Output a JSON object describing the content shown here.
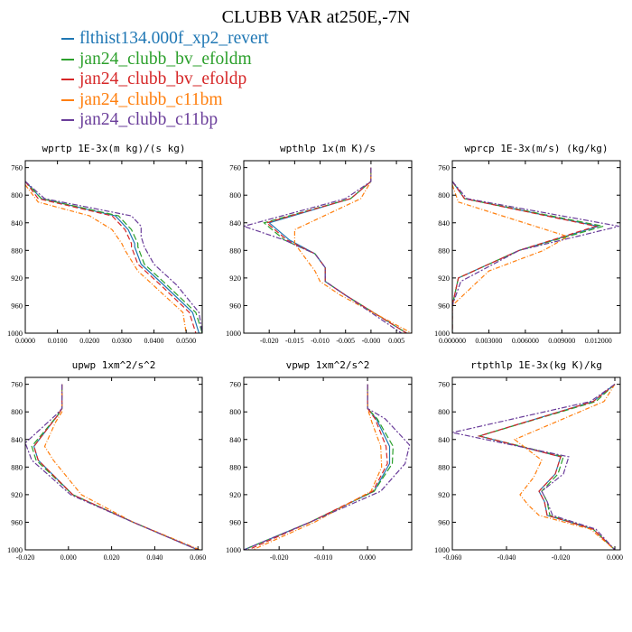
{
  "title": "CLUBB VAR at250E,-7N",
  "legend": [
    {
      "label": "flthist134.000f_xp2_revert",
      "color": "#1f77b4"
    },
    {
      "label": "jan24_clubb_bv_efoldm",
      "color": "#2ca02c"
    },
    {
      "label": "jan24_clubb_bv_efoldp",
      "color": "#d62728"
    },
    {
      "label": "jan24_clubb_c11bm",
      "color": "#ff7f0e"
    },
    {
      "label": "jan24_clubb_c11bp",
      "color": "#6a3d9a"
    }
  ],
  "chart_data": [
    {
      "type": "line",
      "title": "wprtp  1E-3x(m kg)/(s kg)",
      "xlim": [
        0,
        0.055
      ],
      "ylim": [
        1000,
        750
      ],
      "yticks": [
        760,
        800,
        840,
        880,
        920,
        960,
        1000
      ],
      "xticks": [
        0,
        0.01,
        0.02,
        0.03,
        0.04,
        0.05
      ],
      "xticklabels": [
        "0.0000",
        "0.0100",
        "0.0200",
        "0.0300",
        "0.0400",
        "0.0500"
      ],
      "series": [
        {
          "color": "#1f77b4",
          "x": [
            0,
            0.005,
            0.028,
            0.032,
            0.034,
            0.034,
            0.036,
            0.043,
            0.052,
            0.054
          ],
          "y": [
            780,
            805,
            830,
            850,
            870,
            875,
            900,
            930,
            970,
            1000
          ]
        },
        {
          "color": "#2ca02c",
          "x": [
            0,
            0.005,
            0.029,
            0.033,
            0.035,
            0.035,
            0.037,
            0.044,
            0.053,
            0.055
          ],
          "y": [
            780,
            805,
            830,
            850,
            870,
            875,
            900,
            930,
            970,
            1000
          ]
        },
        {
          "color": "#d62728",
          "x": [
            0,
            0.004,
            0.027,
            0.031,
            0.033,
            0.033,
            0.035,
            0.042,
            0.051,
            0.053
          ],
          "y": [
            780,
            805,
            830,
            850,
            870,
            875,
            900,
            930,
            970,
            1000
          ]
        },
        {
          "color": "#ff7f0e",
          "x": [
            0,
            0.004,
            0.02,
            0.027,
            0.03,
            0.031,
            0.035,
            0.042,
            0.049,
            0.05
          ],
          "y": [
            785,
            810,
            830,
            850,
            870,
            880,
            910,
            940,
            970,
            1000
          ]
        },
        {
          "color": "#6a3d9a",
          "x": [
            0,
            0.006,
            0.033,
            0.036,
            0.036,
            0.037,
            0.04,
            0.047,
            0.054,
            0.055
          ],
          "y": [
            780,
            805,
            830,
            845,
            860,
            875,
            900,
            930,
            970,
            1000
          ]
        }
      ]
    },
    {
      "type": "line",
      "title": "wpthlp  1x(m K)/s",
      "xlim": [
        -0.025,
        0.008
      ],
      "ylim": [
        1000,
        750
      ],
      "yticks": [
        760,
        800,
        840,
        880,
        920,
        960,
        1000
      ],
      "xticks": [
        -0.02,
        -0.015,
        -0.01,
        -0.005,
        0,
        0.005
      ],
      "xticklabels": [
        "-0.020",
        "-0.015",
        "-0.010",
        "-0.005",
        "-0.000",
        "0.005"
      ],
      "series": [
        {
          "color": "#1f77b4",
          "x": [
            0,
            0,
            -0.004,
            -0.02,
            -0.016,
            -0.011,
            -0.009,
            -0.009,
            -0.005,
            0.007
          ],
          "y": [
            760,
            780,
            805,
            840,
            865,
            885,
            905,
            925,
            945,
            1000
          ]
        },
        {
          "color": "#2ca02c",
          "x": [
            0,
            0,
            -0.004,
            -0.021,
            -0.017,
            -0.011,
            -0.009,
            -0.009,
            -0.005,
            0.007
          ],
          "y": [
            760,
            780,
            805,
            840,
            865,
            885,
            905,
            925,
            945,
            1000
          ]
        },
        {
          "color": "#d62728",
          "x": [
            0,
            0,
            -0.004,
            -0.0205,
            -0.0165,
            -0.011,
            -0.009,
            -0.009,
            -0.005,
            0.007
          ],
          "y": [
            760,
            780,
            805,
            840,
            865,
            885,
            905,
            925,
            945,
            1000
          ]
        },
        {
          "color": "#ff7f0e",
          "x": [
            0,
            0,
            -0.002,
            -0.015,
            -0.015,
            -0.013,
            -0.011,
            -0.01,
            -0.006,
            0.008
          ],
          "y": [
            760,
            780,
            805,
            850,
            870,
            890,
            910,
            925,
            945,
            1000
          ]
        },
        {
          "color": "#6a3d9a",
          "x": [
            0,
            0,
            -0.005,
            -0.025,
            -0.017,
            -0.011,
            -0.009,
            -0.009,
            -0.005,
            0.006
          ],
          "y": [
            760,
            780,
            805,
            845,
            865,
            885,
            905,
            925,
            945,
            1000
          ]
        }
      ]
    },
    {
      "type": "line",
      "title": "wprcp  1E-3x(m/s) (kg/kg)",
      "xlim": [
        0,
        0.0138
      ],
      "ylim": [
        1000,
        750
      ],
      "yticks": [
        760,
        800,
        840,
        880,
        920,
        960,
        1000
      ],
      "xticks": [
        0,
        0.003,
        0.006,
        0.009,
        0.012
      ],
      "xticklabels": [
        "0.000000",
        "0.003000",
        "0.006000",
        "0.009000",
        "0.012000"
      ],
      "series": [
        {
          "color": "#1f77b4",
          "x": [
            0,
            0.001,
            0.012,
            0.0055,
            0.0005,
            0,
            0
          ],
          "y": [
            780,
            805,
            845,
            880,
            920,
            960,
            1000
          ]
        },
        {
          "color": "#2ca02c",
          "x": [
            0,
            0.001,
            0.0124,
            0.0055,
            0.0005,
            0,
            0
          ],
          "y": [
            780,
            805,
            845,
            880,
            920,
            960,
            1000
          ]
        },
        {
          "color": "#d62728",
          "x": [
            0,
            0.001,
            0.0118,
            0.0055,
            0.0005,
            0,
            0
          ],
          "y": [
            780,
            805,
            845,
            880,
            920,
            960,
            1000
          ]
        },
        {
          "color": "#ff7f0e",
          "x": [
            0,
            0.0005,
            0.0095,
            0.0075,
            0.003,
            0,
            0
          ],
          "y": [
            785,
            810,
            860,
            880,
            910,
            960,
            1000
          ]
        },
        {
          "color": "#6a3d9a",
          "x": [
            0,
            0.0012,
            0.0137,
            0.0055,
            0.0007,
            0,
            0
          ],
          "y": [
            780,
            805,
            845,
            880,
            925,
            960,
            1000
          ]
        }
      ]
    },
    {
      "type": "line",
      "title": "upwp  1xm^2/s^2",
      "xlim": [
        -0.02,
        0.062
      ],
      "ylim": [
        1000,
        750
      ],
      "yticks": [
        760,
        800,
        840,
        880,
        920,
        960,
        1000
      ],
      "xticks": [
        -0.02,
        0,
        0.02,
        0.04,
        0.06
      ],
      "xticklabels": [
        "-0.020",
        "0.000",
        "0.020",
        "0.040",
        "0.060"
      ],
      "series": [
        {
          "color": "#1f77b4",
          "x": [
            -0.003,
            -0.003,
            -0.005,
            -0.016,
            -0.014,
            0.002,
            0.03,
            0.06
          ],
          "y": [
            760,
            795,
            805,
            850,
            870,
            920,
            960,
            1000
          ]
        },
        {
          "color": "#2ca02c",
          "x": [
            -0.003,
            -0.003,
            -0.005,
            -0.017,
            -0.015,
            0.002,
            0.03,
            0.06
          ],
          "y": [
            760,
            795,
            805,
            850,
            870,
            920,
            960,
            1000
          ]
        },
        {
          "color": "#d62728",
          "x": [
            -0.003,
            -0.003,
            -0.005,
            -0.016,
            -0.014,
            0.002,
            0.03,
            0.06
          ],
          "y": [
            760,
            795,
            805,
            850,
            870,
            920,
            960,
            1000
          ]
        },
        {
          "color": "#ff7f0e",
          "x": [
            -0.003,
            -0.003,
            -0.006,
            -0.011,
            -0.007,
            0.006,
            0.03,
            0.061
          ],
          "y": [
            760,
            800,
            815,
            850,
            870,
            920,
            960,
            1000
          ]
        },
        {
          "color": "#6a3d9a",
          "x": [
            -0.003,
            -0.003,
            -0.006,
            -0.02,
            -0.017,
            0.001,
            0.03,
            0.06
          ],
          "y": [
            760,
            795,
            805,
            845,
            870,
            920,
            960,
            1000
          ]
        }
      ]
    },
    {
      "type": "line",
      "title": "vpwp  1xm^2/s^2",
      "xlim": [
        -0.028,
        0.01
      ],
      "ylim": [
        1000,
        750
      ],
      "yticks": [
        760,
        800,
        840,
        880,
        920,
        960,
        1000
      ],
      "xticks": [
        -0.02,
        -0.01,
        0
      ],
      "xticklabels": [
        "-0.020",
        "-0.010",
        "0.000"
      ],
      "series": [
        {
          "color": "#1f77b4",
          "x": [
            0,
            0,
            0.002,
            0.005,
            0.005,
            0.0015,
            -0.013,
            -0.028
          ],
          "y": [
            760,
            795,
            810,
            850,
            875,
            915,
            960,
            1000
          ]
        },
        {
          "color": "#2ca02c",
          "x": [
            0,
            0,
            0.0022,
            0.0058,
            0.0056,
            0.0015,
            -0.013,
            -0.028
          ],
          "y": [
            760,
            795,
            810,
            850,
            875,
            915,
            960,
            1000
          ]
        },
        {
          "color": "#d62728",
          "x": [
            0,
            0,
            0.0017,
            0.0042,
            0.0045,
            0.0012,
            -0.013,
            -0.027
          ],
          "y": [
            760,
            795,
            810,
            850,
            875,
            915,
            960,
            1000
          ]
        },
        {
          "color": "#ff7f0e",
          "x": [
            0,
            0,
            0.001,
            0.003,
            0.0032,
            0.0008,
            -0.012,
            -0.026
          ],
          "y": [
            760,
            795,
            815,
            850,
            880,
            915,
            960,
            1000
          ]
        },
        {
          "color": "#6a3d9a",
          "x": [
            0,
            0,
            0.004,
            0.0095,
            0.0085,
            0.003,
            -0.013,
            -0.028
          ],
          "y": [
            760,
            795,
            810,
            848,
            875,
            915,
            960,
            1000
          ]
        }
      ]
    },
    {
      "type": "line",
      "title": "rtpthlp  1E-3x(kg K)/kg",
      "xlim": [
        -0.06,
        0.002
      ],
      "ylim": [
        1000,
        750
      ],
      "yticks": [
        760,
        800,
        840,
        880,
        920,
        960,
        1000
      ],
      "xticks": [
        -0.06,
        -0.04,
        -0.02,
        0
      ],
      "xticklabels": [
        "-0.060",
        "-0.040",
        "-0.020",
        "0.000"
      ],
      "series": [
        {
          "color": "#1f77b4",
          "x": [
            0,
            -0.008,
            -0.05,
            -0.02,
            -0.022,
            -0.028,
            -0.026,
            -0.025,
            -0.008,
            0
          ],
          "y": [
            760,
            785,
            835,
            865,
            890,
            915,
            930,
            950,
            970,
            1000
          ]
        },
        {
          "color": "#2ca02c",
          "x": [
            0,
            -0.007,
            -0.05,
            -0.019,
            -0.021,
            -0.027,
            -0.025,
            -0.024,
            -0.008,
            0
          ],
          "y": [
            760,
            785,
            835,
            865,
            890,
            915,
            930,
            950,
            970,
            1000
          ]
        },
        {
          "color": "#d62728",
          "x": [
            0,
            -0.008,
            -0.05,
            -0.02,
            -0.022,
            -0.028,
            -0.026,
            -0.025,
            -0.008,
            0
          ],
          "y": [
            760,
            785,
            835,
            865,
            890,
            915,
            930,
            950,
            970,
            1000
          ]
        },
        {
          "color": "#ff7f0e",
          "x": [
            0,
            -0.004,
            -0.037,
            -0.027,
            -0.03,
            -0.035,
            -0.032,
            -0.028,
            -0.009,
            0
          ],
          "y": [
            760,
            785,
            840,
            870,
            895,
            920,
            935,
            950,
            970,
            1000
          ]
        },
        {
          "color": "#6a3d9a",
          "x": [
            0,
            -0.009,
            -0.06,
            -0.017,
            -0.019,
            -0.027,
            -0.025,
            -0.023,
            -0.007,
            0
          ],
          "y": [
            760,
            785,
            830,
            865,
            890,
            915,
            930,
            950,
            970,
            1000
          ]
        }
      ]
    }
  ]
}
